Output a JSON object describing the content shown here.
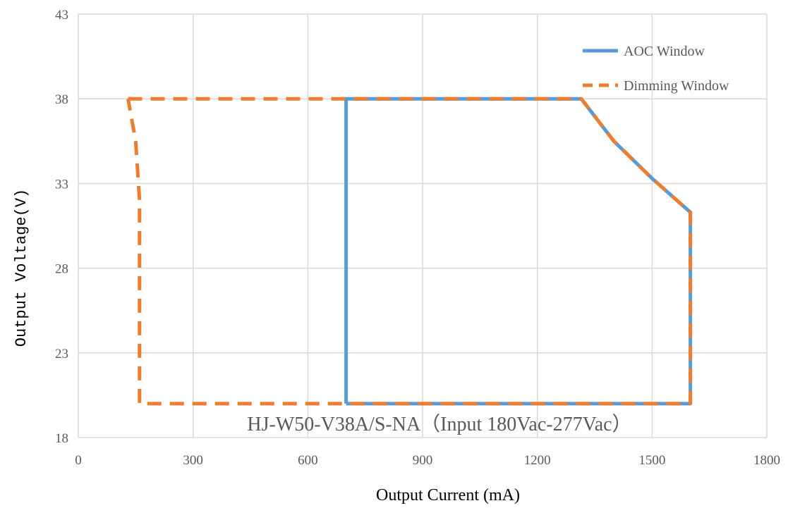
{
  "chart_data": {
    "type": "line",
    "title": "",
    "xlabel": "Output Current (mA)",
    "ylabel": "Output Voltage(V)",
    "xlim": [
      0,
      1800
    ],
    "ylim": [
      18,
      43
    ],
    "x_ticks": [
      "0",
      "300",
      "600",
      "900",
      "1200",
      "1500",
      "1800"
    ],
    "y_ticks": [
      "18",
      "23",
      "28",
      "33",
      "38",
      "43"
    ],
    "grid": true,
    "legend_position": "top-right",
    "annotation": "HJ-W50-V38A/S-NA（Input 180Vac-277Vac）",
    "series": [
      {
        "name": "AOC Window",
        "color": "#5b9bd5",
        "style": "solid",
        "points": [
          [
            700,
            20
          ],
          [
            700,
            38
          ],
          [
            1315,
            38
          ],
          [
            1400,
            35.5
          ],
          [
            1500,
            33.3
          ],
          [
            1600,
            31.3
          ],
          [
            1600,
            20
          ],
          [
            700,
            20
          ]
        ]
      },
      {
        "name": "Dimming Window",
        "color": "#ed7d31",
        "style": "dashed",
        "points": [
          [
            130,
            38
          ],
          [
            1315,
            38
          ],
          [
            1400,
            35.5
          ],
          [
            1500,
            33.3
          ],
          [
            1600,
            31.3
          ],
          [
            1600,
            20
          ],
          [
            160,
            20
          ],
          [
            160,
            32
          ],
          [
            150,
            35.5
          ],
          [
            130,
            38
          ]
        ]
      }
    ]
  }
}
